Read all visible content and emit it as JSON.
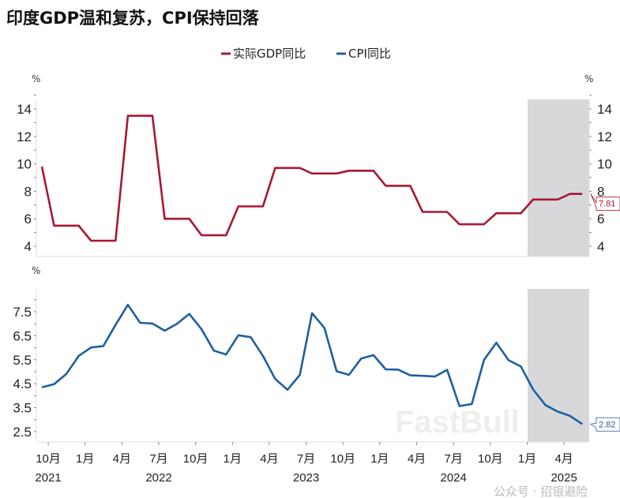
{
  "chart_data": [
    {
      "type": "line",
      "title": "印度GDP温和复苏，CPI保持回落",
      "legend": [
        "实际GDP同比",
        "CPI同比"
      ],
      "legend_placement": "top-center",
      "ylabel_left": "%",
      "ylabel_right": "%",
      "ylim": [
        3.3,
        14.8
      ],
      "yticks": [
        "14",
        "12",
        "10",
        "8",
        "6",
        "4"
      ],
      "ytick_values": [
        14,
        12,
        10,
        8,
        6,
        4
      ],
      "x_start": "2021-09",
      "x_end": "2025-05",
      "forecast_shade_from": "2025-01",
      "series": [
        {
          "name": "实际GDP同比",
          "color": "#a8182f",
          "values": [
            9.8,
            5.5,
            5.5,
            5.5,
            4.4,
            4.4,
            4.4,
            13.5,
            13.5,
            13.5,
            6.0,
            6.0,
            6.0,
            4.8,
            4.8,
            4.8,
            6.9,
            6.9,
            6.9,
            9.7,
            9.7,
            9.7,
            9.3,
            9.3,
            9.3,
            9.5,
            9.5,
            9.5,
            8.4,
            8.4,
            8.4,
            6.5,
            6.5,
            6.5,
            5.6,
            5.6,
            5.6,
            6.4,
            6.4,
            6.4,
            7.4,
            7.4,
            7.4,
            7.81,
            7.81
          ],
          "last_label": "7.81"
        }
      ],
      "grid": false
    },
    {
      "type": "line",
      "ylabel_left": "%",
      "ylim": [
        2.0,
        8.4
      ],
      "yticks": [
        "7.5",
        "6.5",
        "5.5",
        "4.5",
        "3.5",
        "2.5"
      ],
      "ytick_values": [
        7.5,
        6.5,
        5.5,
        4.5,
        3.5,
        2.5
      ],
      "x_start": "2021-09",
      "x_end": "2025-05",
      "forecast_shade_from": "2025-01",
      "series": [
        {
          "name": "CPI同比",
          "color": "#1f5f9f",
          "values": [
            4.35,
            4.48,
            4.91,
            5.66,
            6.01,
            6.07,
            6.95,
            7.79,
            7.04,
            7.01,
            6.71,
            7.0,
            7.41,
            6.77,
            5.88,
            5.72,
            6.52,
            6.44,
            5.66,
            4.7,
            4.25,
            4.87,
            7.44,
            6.83,
            5.02,
            4.87,
            5.55,
            5.69,
            5.1,
            5.09,
            4.85,
            4.83,
            4.8,
            5.08,
            3.57,
            3.65,
            5.49,
            6.21,
            5.48,
            5.22,
            4.26,
            3.61,
            3.34,
            3.16,
            2.82
          ],
          "last_label": "2.82"
        }
      ],
      "xtick_labels": [
        "10月",
        "1月",
        "4月",
        "7月",
        "10月",
        "1月",
        "4月",
        "7月",
        "10月",
        "1月",
        "4月",
        "7月",
        "10月",
        "1月",
        "4月"
      ],
      "year_labels": [
        "2021",
        "2022",
        "2023",
        "2024",
        "2025"
      ],
      "grid": false
    }
  ],
  "watermark": {
    "brand": "FastBull",
    "account": "公众号 · 招银避险"
  }
}
